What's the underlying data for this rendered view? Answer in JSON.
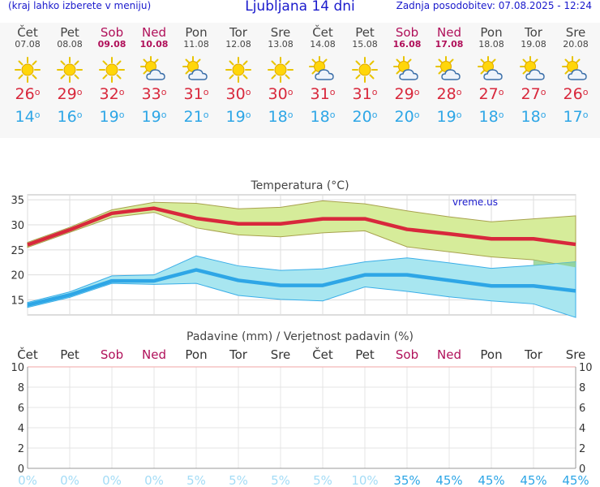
{
  "header": {
    "menu_note": "(kraj lahko izberete v meniju)",
    "title": "Ljubljana 14 dni",
    "updated": "Zadnja posodobitev: 07.08.2025 - 12:24"
  },
  "days": [
    {
      "name": "Čet",
      "date": "07.08",
      "weekend": false,
      "icon": "sun-icon",
      "tmax": "26",
      "tmin": "14"
    },
    {
      "name": "Pet",
      "date": "08.08",
      "weekend": false,
      "icon": "sun-icon",
      "tmax": "29",
      "tmin": "16"
    },
    {
      "name": "Sob",
      "date": "09.08",
      "weekend": true,
      "icon": "sun-icon",
      "tmax": "32",
      "tmin": "19"
    },
    {
      "name": "Ned",
      "date": "10.08",
      "weekend": true,
      "icon": "sun-cloud-icon",
      "tmax": "33",
      "tmin": "19"
    },
    {
      "name": "Pon",
      "date": "11.08",
      "weekend": false,
      "icon": "sun-cloud-icon",
      "tmax": "31",
      "tmin": "21"
    },
    {
      "name": "Tor",
      "date": "12.08",
      "weekend": false,
      "icon": "sun-icon",
      "tmax": "30",
      "tmin": "19"
    },
    {
      "name": "Sre",
      "date": "13.08",
      "weekend": false,
      "icon": "sun-icon",
      "tmax": "30",
      "tmin": "18"
    },
    {
      "name": "Čet",
      "date": "14.08",
      "weekend": false,
      "icon": "sun-cloud-icon",
      "tmax": "31",
      "tmin": "18"
    },
    {
      "name": "Pet",
      "date": "15.08",
      "weekend": false,
      "icon": "sun-icon",
      "tmax": "31",
      "tmin": "20"
    },
    {
      "name": "Sob",
      "date": "16.08",
      "weekend": true,
      "icon": "sun-cloud-icon",
      "tmax": "29",
      "tmin": "20"
    },
    {
      "name": "Ned",
      "date": "17.08",
      "weekend": true,
      "icon": "sun-cloud-icon",
      "tmax": "28",
      "tmin": "19"
    },
    {
      "name": "Pon",
      "date": "18.08",
      "weekend": false,
      "icon": "sun-cloud-icon",
      "tmax": "27",
      "tmin": "18"
    },
    {
      "name": "Tor",
      "date": "19.08",
      "weekend": false,
      "icon": "sun-cloud-icon",
      "tmax": "27",
      "tmin": "18"
    },
    {
      "name": "Sre",
      "date": "20.08",
      "weekend": false,
      "icon": "sun-cloud-icon",
      "tmax": "26",
      "tmin": "17"
    }
  ],
  "colors": {
    "weekend": "#b0105a",
    "tmax": "#d8283c",
    "tmin": "#2ea6e6",
    "max_band": "#d6ec9a",
    "min_band": "#a8e6f0",
    "overlap": "#8ccf8c",
    "precip_prob": "#2ea6e6"
  },
  "chart_data": [
    {
      "type": "area",
      "title": "Temperatura (°C)",
      "watermark": "vreme.us",
      "ylim": [
        12,
        36
      ],
      "yticks": [
        15,
        20,
        25,
        30,
        35
      ],
      "x": [
        0,
        1,
        2,
        3,
        4,
        5,
        6,
        7,
        8,
        9,
        10,
        11,
        12,
        13
      ],
      "series": [
        {
          "name": "Max",
          "values": [
            26,
            29,
            32.3,
            33.3,
            31.3,
            30.2,
            30.2,
            31.2,
            31.2,
            29.1,
            28.2,
            27.2,
            27.2,
            26.1
          ]
        },
        {
          "name": "Max upper",
          "values": [
            26.5,
            29.5,
            33,
            34.5,
            34.3,
            33.2,
            33.5,
            34.8,
            34.2,
            32.8,
            31.6,
            30.6,
            31.2,
            31.8
          ]
        },
        {
          "name": "Max lower",
          "values": [
            25.5,
            28.5,
            31.5,
            32.5,
            29.4,
            28,
            27.6,
            28.4,
            28.8,
            25.6,
            24.6,
            23.6,
            23,
            21.5
          ]
        },
        {
          "name": "Min",
          "values": [
            14,
            16,
            18.8,
            18.8,
            21,
            18.9,
            17.9,
            17.9,
            20,
            20,
            18.9,
            17.8,
            17.8,
            16.8
          ]
        },
        {
          "name": "Min upper",
          "values": [
            14.5,
            16.6,
            19.8,
            20,
            23.8,
            21.8,
            20.9,
            21.2,
            22.6,
            23.4,
            22.4,
            21.3,
            21.9,
            22.6
          ]
        },
        {
          "name": "Min lower",
          "values": [
            13.5,
            15.5,
            18.3,
            18.1,
            18.3,
            15.9,
            15.1,
            14.8,
            17.6,
            16.7,
            15.6,
            14.8,
            14.2,
            11.5
          ]
        }
      ]
    },
    {
      "type": "bar",
      "title": "Padavine (mm) / Verjetnost padavin (%)",
      "categories": [
        "Čet",
        "Pet",
        "Sob",
        "Ned",
        "Pon",
        "Tor",
        "Sre",
        "Čet",
        "Pet",
        "Sob",
        "Ned",
        "Pon",
        "Tor",
        "Sre"
      ],
      "ylim": [
        0,
        10
      ],
      "yticks": [
        0,
        2,
        4,
        6,
        8,
        10
      ],
      "values_mm": [
        0,
        0,
        0,
        0,
        0,
        0,
        0,
        0,
        0,
        0,
        0,
        0,
        0,
        0
      ],
      "probability_pct": [
        0,
        0,
        0,
        0,
        5,
        5,
        5,
        5,
        10,
        35,
        45,
        45,
        45,
        45
      ],
      "probability_labels": [
        "0%",
        "0%",
        "0%",
        "0%",
        "5%",
        "5%",
        "5%",
        "5%",
        "10%",
        "35%",
        "45%",
        "45%",
        "45%",
        "45%"
      ]
    }
  ]
}
